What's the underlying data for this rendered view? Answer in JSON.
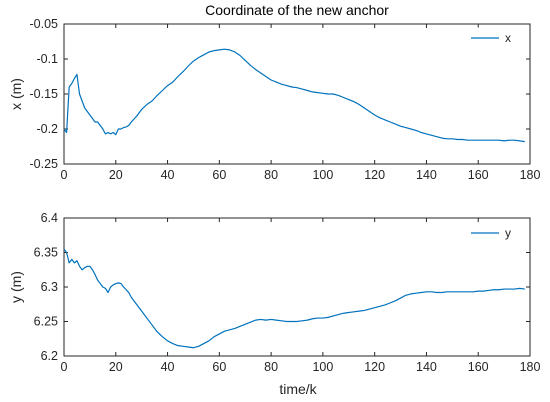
{
  "chart_data": [
    {
      "type": "line",
      "title": "Coordinate of the new anchor",
      "xlabel": "",
      "ylabel": "x (m)",
      "xlim": [
        0,
        180
      ],
      "ylim": [
        -0.25,
        -0.05
      ],
      "xticks": [
        0,
        20,
        40,
        60,
        80,
        100,
        120,
        140,
        160,
        180
      ],
      "yticks": [
        -0.25,
        -0.2,
        -0.15,
        -0.1,
        -0.05
      ],
      "ytick_labels": [
        "-0.25",
        "-0.2",
        "-0.15",
        "-0.1",
        "-0.05"
      ],
      "legend_position": "top-right",
      "grid": false,
      "color": "#0072BD",
      "series": [
        {
          "name": "x",
          "x": [
            0,
            1,
            2,
            3,
            4,
            5,
            6,
            7,
            8,
            9,
            10,
            11,
            12,
            13,
            14,
            15,
            16,
            17,
            18,
            19,
            20,
            21,
            22,
            23,
            24,
            25,
            26,
            28,
            30,
            32,
            34,
            36,
            38,
            40,
            42,
            44,
            46,
            48,
            50,
            52,
            54,
            56,
            58,
            60,
            62,
            64,
            66,
            68,
            70,
            72,
            74,
            76,
            78,
            80,
            82,
            84,
            86,
            88,
            90,
            92,
            94,
            96,
            98,
            100,
            102,
            104,
            106,
            108,
            110,
            112,
            114,
            116,
            118,
            120,
            122,
            124,
            126,
            128,
            130,
            132,
            134,
            136,
            138,
            140,
            142,
            144,
            146,
            148,
            150,
            152,
            154,
            156,
            158,
            160,
            162,
            164,
            166,
            168,
            170,
            172,
            174,
            176,
            178
          ],
          "values": [
            -0.2,
            -0.205,
            -0.14,
            -0.135,
            -0.128,
            -0.122,
            -0.15,
            -0.16,
            -0.17,
            -0.175,
            -0.18,
            -0.185,
            -0.19,
            -0.19,
            -0.195,
            -0.2,
            -0.207,
            -0.205,
            -0.207,
            -0.205,
            -0.208,
            -0.2,
            -0.2,
            -0.198,
            -0.197,
            -0.195,
            -0.19,
            -0.182,
            -0.172,
            -0.165,
            -0.16,
            -0.152,
            -0.145,
            -0.138,
            -0.133,
            -0.125,
            -0.118,
            -0.11,
            -0.103,
            -0.098,
            -0.094,
            -0.09,
            -0.088,
            -0.087,
            -0.086,
            -0.087,
            -0.09,
            -0.095,
            -0.102,
            -0.109,
            -0.115,
            -0.12,
            -0.125,
            -0.13,
            -0.133,
            -0.136,
            -0.138,
            -0.14,
            -0.141,
            -0.143,
            -0.145,
            -0.147,
            -0.148,
            -0.149,
            -0.15,
            -0.15,
            -0.152,
            -0.155,
            -0.158,
            -0.161,
            -0.165,
            -0.17,
            -0.175,
            -0.18,
            -0.184,
            -0.187,
            -0.19,
            -0.193,
            -0.196,
            -0.198,
            -0.2,
            -0.202,
            -0.205,
            -0.207,
            -0.209,
            -0.211,
            -0.213,
            -0.214,
            -0.214,
            -0.215,
            -0.215,
            -0.216,
            -0.216,
            -0.216,
            -0.216,
            -0.216,
            -0.216,
            -0.216,
            -0.217,
            -0.216,
            -0.216,
            -0.217,
            -0.218
          ]
        }
      ]
    },
    {
      "type": "line",
      "title": "",
      "xlabel": "time/k",
      "ylabel": "y (m)",
      "xlim": [
        0,
        180
      ],
      "ylim": [
        6.2,
        6.4
      ],
      "xticks": [
        0,
        20,
        40,
        60,
        80,
        100,
        120,
        140,
        160,
        180
      ],
      "yticks": [
        6.2,
        6.25,
        6.3,
        6.35,
        6.4
      ],
      "ytick_labels": [
        "6.2",
        "6.25",
        "6.3",
        "6.35",
        "6.4"
      ],
      "legend_position": "top-right",
      "grid": false,
      "color": "#0072BD",
      "series": [
        {
          "name": "y",
          "x": [
            0,
            1,
            2,
            3,
            4,
            5,
            6,
            7,
            8,
            9,
            10,
            11,
            12,
            13,
            14,
            15,
            16,
            17,
            18,
            19,
            20,
            21,
            22,
            23,
            24,
            25,
            26,
            28,
            30,
            32,
            34,
            36,
            38,
            40,
            42,
            44,
            46,
            48,
            50,
            52,
            54,
            56,
            58,
            60,
            62,
            64,
            66,
            68,
            70,
            72,
            74,
            76,
            78,
            80,
            82,
            84,
            86,
            88,
            90,
            92,
            94,
            96,
            98,
            100,
            102,
            104,
            106,
            108,
            110,
            112,
            114,
            116,
            118,
            120,
            122,
            124,
            126,
            128,
            130,
            132,
            134,
            136,
            138,
            140,
            142,
            144,
            146,
            148,
            150,
            152,
            154,
            156,
            158,
            160,
            162,
            164,
            166,
            168,
            170,
            172,
            174,
            176,
            178
          ],
          "values": [
            6.355,
            6.35,
            6.335,
            6.34,
            6.335,
            6.338,
            6.33,
            6.325,
            6.328,
            6.33,
            6.33,
            6.325,
            6.318,
            6.31,
            6.305,
            6.3,
            6.298,
            6.292,
            6.3,
            6.303,
            6.305,
            6.306,
            6.305,
            6.3,
            6.296,
            6.292,
            6.285,
            6.275,
            6.265,
            6.255,
            6.245,
            6.235,
            6.228,
            6.222,
            6.218,
            6.215,
            6.214,
            6.213,
            6.212,
            6.214,
            6.218,
            6.222,
            6.228,
            6.232,
            6.236,
            6.238,
            6.24,
            6.243,
            6.246,
            6.249,
            6.252,
            6.253,
            6.252,
            6.253,
            6.252,
            6.251,
            6.25,
            6.25,
            6.25,
            6.251,
            6.252,
            6.254,
            6.255,
            6.255,
            6.256,
            6.258,
            6.26,
            6.262,
            6.263,
            6.264,
            6.265,
            6.266,
            6.268,
            6.27,
            6.272,
            6.274,
            6.277,
            6.28,
            6.284,
            6.288,
            6.29,
            6.291,
            6.292,
            6.293,
            6.293,
            6.292,
            6.292,
            6.293,
            6.293,
            6.293,
            6.293,
            6.293,
            6.293,
            6.294,
            6.294,
            6.295,
            6.296,
            6.296,
            6.297,
            6.297,
            6.297,
            6.298,
            6.297
          ]
        }
      ]
    }
  ]
}
